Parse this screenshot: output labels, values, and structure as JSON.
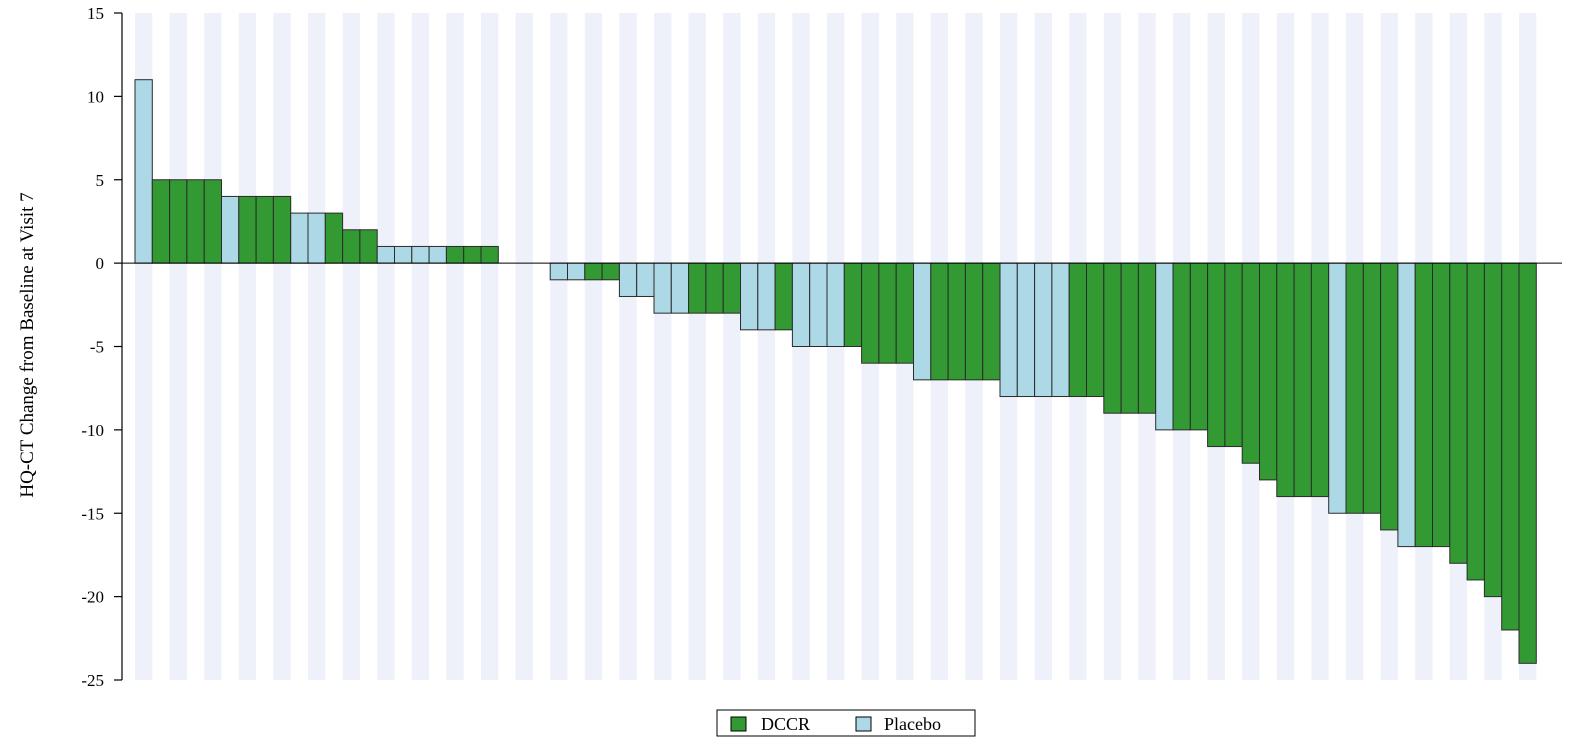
{
  "chart_data": {
    "type": "bar",
    "ylabel": "HQ-CT Change from Baseline at Visit 7",
    "ylim": [
      -25,
      15
    ],
    "yticks": [
      15,
      10,
      5,
      0,
      -5,
      -10,
      -15,
      -20,
      -25
    ],
    "grid": "alternating vertical bands",
    "legend_placement": "bottom-center",
    "colors": {
      "DCCR": "#339933",
      "Placebo": "#add8e6",
      "band": "#eef0fa"
    },
    "legend": [
      {
        "name": "DCCR",
        "color": "#339933"
      },
      {
        "name": "Placebo",
        "color": "#add8e6"
      }
    ],
    "bars": [
      {
        "group": "Placebo",
        "value": 11
      },
      {
        "group": "DCCR",
        "value": 5
      },
      {
        "group": "DCCR",
        "value": 5
      },
      {
        "group": "DCCR",
        "value": 5
      },
      {
        "group": "DCCR",
        "value": 5
      },
      {
        "group": "Placebo",
        "value": 4
      },
      {
        "group": "DCCR",
        "value": 4
      },
      {
        "group": "DCCR",
        "value": 4
      },
      {
        "group": "DCCR",
        "value": 4
      },
      {
        "group": "Placebo",
        "value": 3
      },
      {
        "group": "Placebo",
        "value": 3
      },
      {
        "group": "DCCR",
        "value": 3
      },
      {
        "group": "DCCR",
        "value": 2
      },
      {
        "group": "DCCR",
        "value": 2
      },
      {
        "group": "Placebo",
        "value": 1
      },
      {
        "group": "Placebo",
        "value": 1
      },
      {
        "group": "Placebo",
        "value": 1
      },
      {
        "group": "Placebo",
        "value": 1
      },
      {
        "group": "DCCR",
        "value": 1
      },
      {
        "group": "DCCR",
        "value": 1
      },
      {
        "group": "DCCR",
        "value": 1
      },
      {
        "group": "None",
        "value": 0
      },
      {
        "group": "None",
        "value": 0
      },
      {
        "group": "None",
        "value": 0
      },
      {
        "group": "Placebo",
        "value": -1
      },
      {
        "group": "Placebo",
        "value": -1
      },
      {
        "group": "DCCR",
        "value": -1
      },
      {
        "group": "DCCR",
        "value": -1
      },
      {
        "group": "Placebo",
        "value": -2
      },
      {
        "group": "Placebo",
        "value": -2
      },
      {
        "group": "Placebo",
        "value": -3
      },
      {
        "group": "Placebo",
        "value": -3
      },
      {
        "group": "DCCR",
        "value": -3
      },
      {
        "group": "DCCR",
        "value": -3
      },
      {
        "group": "DCCR",
        "value": -3
      },
      {
        "group": "Placebo",
        "value": -4
      },
      {
        "group": "Placebo",
        "value": -4
      },
      {
        "group": "DCCR",
        "value": -4
      },
      {
        "group": "Placebo",
        "value": -5
      },
      {
        "group": "Placebo",
        "value": -5
      },
      {
        "group": "Placebo",
        "value": -5
      },
      {
        "group": "DCCR",
        "value": -5
      },
      {
        "group": "DCCR",
        "value": -6
      },
      {
        "group": "DCCR",
        "value": -6
      },
      {
        "group": "DCCR",
        "value": -6
      },
      {
        "group": "Placebo",
        "value": -7
      },
      {
        "group": "DCCR",
        "value": -7
      },
      {
        "group": "DCCR",
        "value": -7
      },
      {
        "group": "DCCR",
        "value": -7
      },
      {
        "group": "DCCR",
        "value": -7
      },
      {
        "group": "Placebo",
        "value": -8
      },
      {
        "group": "Placebo",
        "value": -8
      },
      {
        "group": "Placebo",
        "value": -8
      },
      {
        "group": "Placebo",
        "value": -8
      },
      {
        "group": "DCCR",
        "value": -8
      },
      {
        "group": "DCCR",
        "value": -8
      },
      {
        "group": "DCCR",
        "value": -9
      },
      {
        "group": "DCCR",
        "value": -9
      },
      {
        "group": "DCCR",
        "value": -9
      },
      {
        "group": "Placebo",
        "value": -10
      },
      {
        "group": "DCCR",
        "value": -10
      },
      {
        "group": "DCCR",
        "value": -10
      },
      {
        "group": "DCCR",
        "value": -11
      },
      {
        "group": "DCCR",
        "value": -11
      },
      {
        "group": "DCCR",
        "value": -12
      },
      {
        "group": "DCCR",
        "value": -13
      },
      {
        "group": "DCCR",
        "value": -14
      },
      {
        "group": "DCCR",
        "value": -14
      },
      {
        "group": "DCCR",
        "value": -14
      },
      {
        "group": "Placebo",
        "value": -15
      },
      {
        "group": "DCCR",
        "value": -15
      },
      {
        "group": "DCCR",
        "value": -15
      },
      {
        "group": "DCCR",
        "value": -16
      },
      {
        "group": "Placebo",
        "value": -17
      },
      {
        "group": "DCCR",
        "value": -17
      },
      {
        "group": "DCCR",
        "value": -17
      },
      {
        "group": "DCCR",
        "value": -18
      },
      {
        "group": "DCCR",
        "value": -19
      },
      {
        "group": "DCCR",
        "value": -20
      },
      {
        "group": "DCCR",
        "value": -22
      },
      {
        "group": "DCCR",
        "value": -24
      }
    ]
  }
}
